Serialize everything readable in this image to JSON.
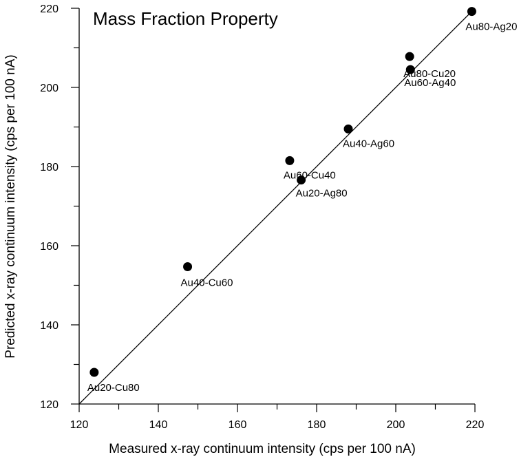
{
  "chart_data": {
    "type": "scatter",
    "title": "Mass Fraction Property",
    "xlabel": "Measured x-ray continuum intensity (cps per 100 nA)",
    "ylabel": "Predicted x-ray continuum intensity (cps per 100 nA)",
    "xlim": [
      120,
      220
    ],
    "ylim": [
      120,
      220
    ],
    "xticks": [
      120,
      140,
      160,
      180,
      200,
      220
    ],
    "yticks": [
      120,
      140,
      160,
      180,
      200,
      220
    ],
    "grid": false,
    "reference_line": {
      "from": [
        120,
        120
      ],
      "to": [
        220,
        220
      ]
    },
    "points": [
      {
        "label": "Au20-Cu80",
        "x": 123.8,
        "y": 128.0
      },
      {
        "label": "Au40-Cu60",
        "x": 147.4,
        "y": 154.7
      },
      {
        "label": "Au60-Cu40",
        "x": 173.2,
        "y": 181.5
      },
      {
        "label": "Au20-Ag80",
        "x": 176.1,
        "y": 176.6
      },
      {
        "label": "Au40-Ag60",
        "x": 188.0,
        "y": 189.5
      },
      {
        "label": "Au80-Cu20",
        "x": 203.5,
        "y": 207.8
      },
      {
        "label": "Au60-Ag40",
        "x": 203.7,
        "y": 204.5
      },
      {
        "label": "Au80-Ag20",
        "x": 219.2,
        "y": 219.2
      }
    ],
    "colors": {
      "points": "#000000",
      "line": "#000000"
    }
  }
}
